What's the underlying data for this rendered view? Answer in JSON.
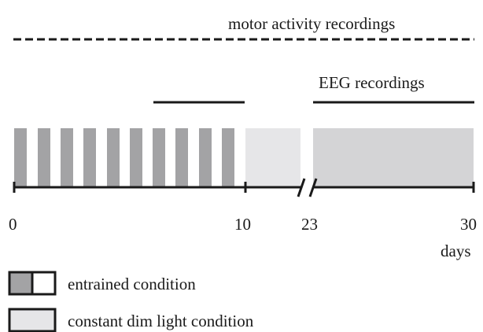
{
  "labels": {
    "motor_activity": "motor activity recordings",
    "eeg": "EEG recordings",
    "days_unit": "days"
  },
  "axis_ticks": [
    "0",
    "10",
    "23",
    "30"
  ],
  "legend": {
    "entrained": "entrained condition",
    "constant_dim": "constant dim light condition"
  },
  "colors": {
    "dark_bar": "#a3a3a5",
    "light_bar": "#e6e6e8",
    "eeg_bar": "#d4d4d6",
    "line": "#1a1a1a"
  }
}
